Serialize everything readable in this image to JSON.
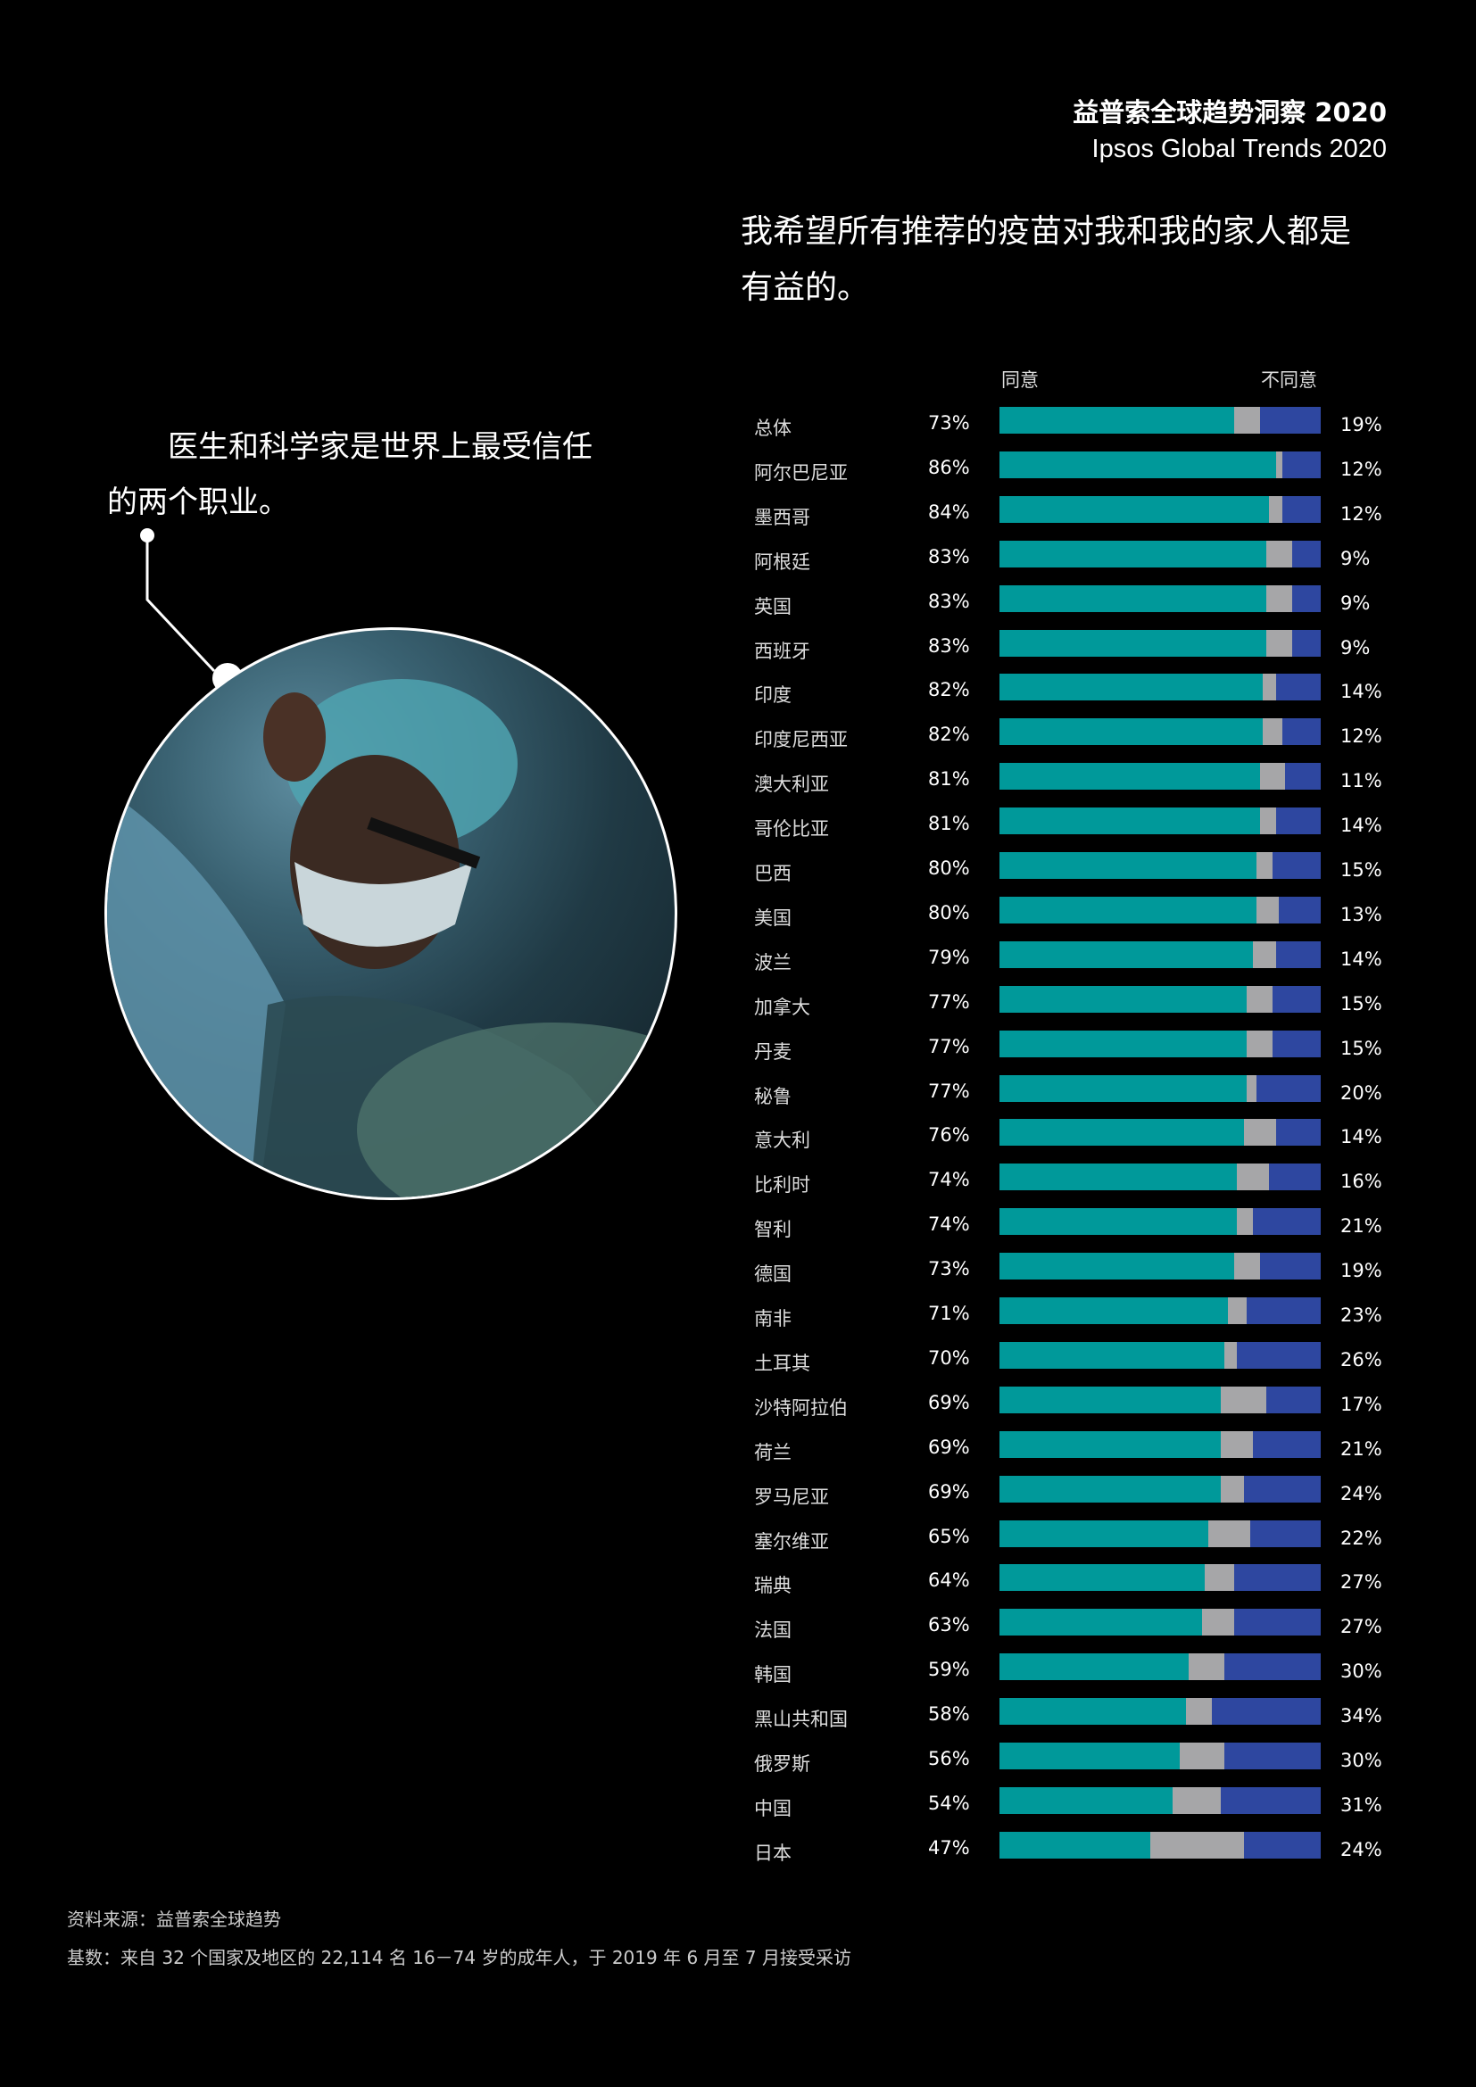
{
  "header": {
    "title_zh": "益普索全球趋势洞察 2020",
    "title_en": "Ipsos Global Trends 2020"
  },
  "question": "我希望所有推荐的疫苗对我和我的家人都是有益的。",
  "callout": "医生和科学家是世界上最受信任的两个职业。",
  "footer": {
    "source": "资料来源：益普索全球趋势",
    "base": "基数：来自 32 个国家及地区的 22,114 名 16－74 岁的成年人，于 2019 年 6 月至 7 月接受采访"
  },
  "colors": {
    "agree": "#00999a",
    "neutral": "#a6a6a8",
    "disagree": "#2e47a0",
    "background": "#000000"
  },
  "chart_data": {
    "type": "bar",
    "orientation": "horizontal-stacked",
    "legend": {
      "agree": "同意",
      "disagree": "不同意"
    },
    "categories": [
      "总体",
      "阿尔巴尼亚",
      "墨西哥",
      "阿根廷",
      "英国",
      "西班牙",
      "印度",
      "印度尼西亚",
      "澳大利亚",
      "哥伦比亚",
      "巴西",
      "美国",
      "波兰",
      "加拿大",
      "丹麦",
      "秘鲁",
      "意大利",
      "比利时",
      "智利",
      "德国",
      "南非",
      "土耳其",
      "沙特阿拉伯",
      "荷兰",
      "罗马尼亚",
      "塞尔维亚",
      "瑞典",
      "法国",
      "韩国",
      "黑山共和国",
      "俄罗斯",
      "中国",
      "日本"
    ],
    "series": [
      {
        "name": "同意",
        "values": [
          73,
          86,
          84,
          83,
          83,
          83,
          82,
          82,
          81,
          81,
          80,
          80,
          79,
          77,
          77,
          77,
          76,
          74,
          74,
          73,
          71,
          70,
          69,
          69,
          69,
          65,
          64,
          63,
          59,
          58,
          56,
          54,
          47
        ]
      },
      {
        "name": "不同意",
        "values": [
          19,
          12,
          12,
          9,
          9,
          9,
          14,
          12,
          11,
          14,
          15,
          13,
          14,
          15,
          15,
          20,
          14,
          16,
          21,
          19,
          23,
          26,
          17,
          21,
          24,
          22,
          27,
          27,
          30,
          34,
          30,
          31,
          24
        ]
      }
    ],
    "unit": "%",
    "xlim": [
      0,
      100
    ]
  }
}
